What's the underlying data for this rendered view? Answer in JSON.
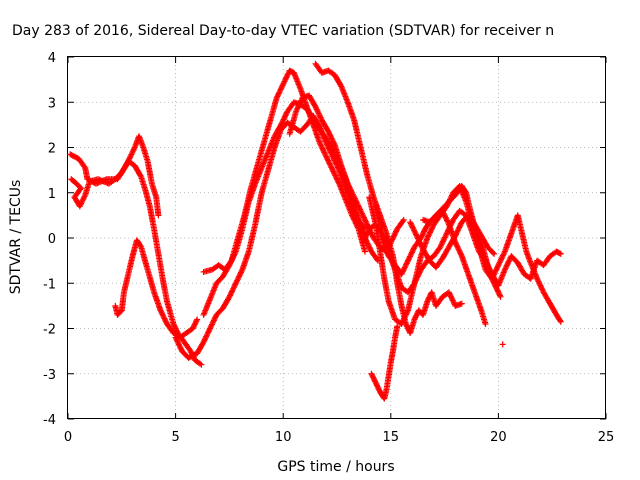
{
  "chart_data": {
    "type": "scatter",
    "title": "Day 283 of 2016, Sidereal Day-to-day VTEC variation (SDTVAR) for receiver n",
    "xlabel": "GPS time / hours",
    "ylabel": "SDTVAR / TECUs",
    "xlim": [
      0,
      25
    ],
    "ylim": [
      -4,
      4
    ],
    "xticks": [
      "0",
      "5",
      "10",
      "15",
      "20",
      "25"
    ],
    "yticks": [
      "-4",
      "-3",
      "-2",
      "-1",
      "0",
      "1",
      "2",
      "3",
      "4"
    ],
    "grid": true,
    "marker": "+",
    "color": "#ff0000",
    "series": [
      {
        "points": [
          [
            0.1,
            1.85
          ],
          [
            0.5,
            1.75
          ],
          [
            0.8,
            1.55
          ],
          [
            0.9,
            1.3
          ],
          [
            1.3,
            1.2
          ],
          [
            1.8,
            1.3
          ],
          [
            2.3,
            1.3
          ],
          [
            2.7,
            1.6
          ],
          [
            3.1,
            2.0
          ],
          [
            3.3,
            2.25
          ],
          [
            3.5,
            2.0
          ],
          [
            3.7,
            1.7
          ],
          [
            3.9,
            1.2
          ],
          [
            4.1,
            0.9
          ],
          [
            4.2,
            0.5
          ]
        ]
      },
      {
        "points": [
          [
            0.15,
            1.3
          ],
          [
            0.4,
            1.2
          ],
          [
            0.6,
            1.1
          ],
          [
            0.3,
            0.9
          ],
          [
            0.55,
            0.7
          ],
          [
            0.8,
            0.95
          ],
          [
            1.0,
            1.25
          ],
          [
            1.4,
            1.3
          ],
          [
            1.9,
            1.2
          ],
          [
            2.2,
            1.3
          ],
          [
            2.5,
            1.45
          ],
          [
            2.8,
            1.7
          ],
          [
            3.1,
            1.6
          ],
          [
            3.4,
            1.35
          ],
          [
            3.6,
            1.05
          ],
          [
            3.8,
            0.7
          ],
          [
            4.0,
            0.2
          ],
          [
            4.2,
            -0.35
          ],
          [
            4.4,
            -0.9
          ],
          [
            4.6,
            -1.4
          ],
          [
            4.9,
            -1.9
          ],
          [
            5.1,
            -2.1
          ],
          [
            5.4,
            -2.3
          ],
          [
            5.7,
            -2.5
          ],
          [
            5.9,
            -2.7
          ],
          [
            6.2,
            -2.8
          ]
        ]
      },
      {
        "points": [
          [
            2.2,
            -1.5
          ],
          [
            2.3,
            -1.7
          ],
          [
            2.5,
            -1.6
          ],
          [
            2.6,
            -1.2
          ],
          [
            2.8,
            -0.8
          ],
          [
            3.0,
            -0.4
          ],
          [
            3.2,
            -0.05
          ],
          [
            3.4,
            -0.2
          ],
          [
            3.7,
            -0.7
          ],
          [
            4.0,
            -1.2
          ],
          [
            4.3,
            -1.6
          ],
          [
            4.6,
            -1.9
          ],
          [
            4.9,
            -2.1
          ],
          [
            5.2,
            -2.2
          ],
          [
            5.5,
            -2.1
          ],
          [
            5.8,
            -2.0
          ],
          [
            6.0,
            -1.8
          ]
        ]
      },
      {
        "points": [
          [
            5.0,
            -2.2
          ],
          [
            5.3,
            -2.5
          ],
          [
            5.6,
            -2.65
          ],
          [
            6.0,
            -2.55
          ],
          [
            6.3,
            -2.3
          ],
          [
            6.6,
            -2.0
          ],
          [
            6.9,
            -1.7
          ],
          [
            7.2,
            -1.55
          ],
          [
            7.5,
            -1.3
          ],
          [
            7.8,
            -1.0
          ],
          [
            8.1,
            -0.7
          ],
          [
            8.4,
            -0.3
          ],
          [
            8.7,
            0.3
          ],
          [
            9.0,
            1.0
          ],
          [
            9.3,
            1.5
          ],
          [
            9.6,
            2.0
          ],
          [
            9.9,
            2.4
          ],
          [
            10.2,
            2.55
          ],
          [
            10.5,
            2.45
          ],
          [
            10.8,
            2.35
          ],
          [
            11.1,
            2.5
          ],
          [
            11.4,
            2.7
          ],
          [
            11.7,
            2.45
          ],
          [
            12.0,
            2.1
          ],
          [
            12.3,
            1.8
          ],
          [
            12.6,
            1.5
          ],
          [
            12.9,
            1.1
          ],
          [
            13.2,
            0.7
          ],
          [
            13.5,
            0.4
          ],
          [
            13.8,
            0.2
          ]
        ]
      },
      {
        "points": [
          [
            6.3,
            -1.7
          ],
          [
            6.6,
            -1.35
          ],
          [
            6.9,
            -1.0
          ],
          [
            7.2,
            -0.85
          ],
          [
            7.5,
            -0.6
          ],
          [
            7.8,
            -0.3
          ],
          [
            8.1,
            0.2
          ],
          [
            8.4,
            0.8
          ],
          [
            8.7,
            1.2
          ],
          [
            9.0,
            1.55
          ],
          [
            9.3,
            1.9
          ],
          [
            9.6,
            2.25
          ],
          [
            9.9,
            2.5
          ],
          [
            10.2,
            2.8
          ],
          [
            10.5,
            3.0
          ],
          [
            10.8,
            2.95
          ],
          [
            11.1,
            2.85
          ],
          [
            11.4,
            2.65
          ],
          [
            11.7,
            2.4
          ],
          [
            12.0,
            2.2
          ],
          [
            12.3,
            1.95
          ],
          [
            12.6,
            1.6
          ],
          [
            12.9,
            1.3
          ],
          [
            13.2,
            0.9
          ],
          [
            13.5,
            0.4
          ],
          [
            13.8,
            0.0
          ],
          [
            14.1,
            -0.3
          ],
          [
            14.4,
            -0.5
          ]
        ]
      },
      {
        "points": [
          [
            6.3,
            -0.75
          ],
          [
            6.7,
            -0.7
          ],
          [
            7.0,
            -0.6
          ],
          [
            7.3,
            -0.7
          ],
          [
            7.6,
            -0.5
          ],
          [
            7.9,
            0.0
          ],
          [
            8.2,
            0.5
          ],
          [
            8.5,
            1.1
          ],
          [
            8.8,
            1.6
          ],
          [
            9.1,
            2.1
          ],
          [
            9.4,
            2.6
          ],
          [
            9.7,
            3.1
          ],
          [
            10.0,
            3.4
          ],
          [
            10.3,
            3.7
          ],
          [
            10.5,
            3.65
          ],
          [
            10.8,
            3.3
          ],
          [
            11.1,
            2.9
          ],
          [
            11.4,
            2.5
          ],
          [
            11.7,
            2.1
          ],
          [
            12.0,
            1.8
          ],
          [
            12.3,
            1.5
          ],
          [
            12.6,
            1.2
          ],
          [
            12.9,
            0.85
          ],
          [
            13.2,
            0.5
          ],
          [
            13.5,
            0.2
          ],
          [
            13.8,
            -0.3
          ]
        ]
      },
      {
        "points": [
          [
            10.3,
            2.3
          ],
          [
            10.6,
            2.8
          ],
          [
            10.9,
            3.1
          ],
          [
            11.2,
            3.15
          ],
          [
            11.5,
            2.9
          ],
          [
            11.8,
            2.6
          ],
          [
            12.1,
            2.35
          ],
          [
            12.4,
            2.05
          ],
          [
            12.7,
            1.6
          ],
          [
            13.0,
            1.2
          ],
          [
            13.3,
            0.9
          ],
          [
            13.6,
            0.6
          ],
          [
            13.9,
            0.3
          ],
          [
            14.2,
            0.0
          ],
          [
            14.5,
            -0.2
          ],
          [
            14.8,
            -0.3
          ],
          [
            15.1,
            0.0
          ],
          [
            15.3,
            0.2
          ],
          [
            15.6,
            0.4
          ]
        ]
      },
      {
        "points": [
          [
            11.5,
            3.85
          ],
          [
            11.8,
            3.65
          ],
          [
            12.1,
            3.7
          ],
          [
            12.4,
            3.6
          ],
          [
            12.7,
            3.35
          ],
          [
            13.0,
            3.0
          ],
          [
            13.3,
            2.6
          ],
          [
            13.6,
            2.0
          ],
          [
            13.9,
            1.4
          ],
          [
            14.2,
            0.9
          ],
          [
            14.5,
            0.5
          ],
          [
            14.8,
            0.1
          ],
          [
            15.1,
            -0.4
          ],
          [
            15.3,
            -1.0
          ],
          [
            15.5,
            -1.5
          ],
          [
            15.7,
            -1.9
          ],
          [
            15.9,
            -2.1
          ],
          [
            16.1,
            -1.8
          ],
          [
            16.3,
            -1.6
          ],
          [
            16.5,
            -1.7
          ],
          [
            16.7,
            -1.4
          ],
          [
            16.9,
            -1.2
          ],
          [
            17.1,
            -1.5
          ],
          [
            17.4,
            -1.3
          ],
          [
            17.7,
            -1.2
          ],
          [
            18.0,
            -1.5
          ],
          [
            18.3,
            -1.45
          ]
        ]
      },
      {
        "points": [
          [
            13.7,
            -0.1
          ],
          [
            14.0,
            0.2
          ],
          [
            14.3,
            0.3
          ],
          [
            14.6,
            0.1
          ],
          [
            14.9,
            -0.3
          ],
          [
            15.2,
            -0.7
          ],
          [
            15.5,
            -1.1
          ],
          [
            15.8,
            -1.2
          ],
          [
            16.1,
            -1.0
          ],
          [
            16.4,
            -0.7
          ],
          [
            16.7,
            -0.5
          ],
          [
            17.0,
            -0.4
          ],
          [
            17.3,
            -0.2
          ],
          [
            17.6,
            0.1
          ],
          [
            17.9,
            0.4
          ],
          [
            18.2,
            0.6
          ],
          [
            18.5,
            0.5
          ],
          [
            18.8,
            0.1
          ],
          [
            19.1,
            -0.3
          ],
          [
            19.4,
            -0.5
          ],
          [
            19.7,
            -0.8
          ],
          [
            20.0,
            -1.05
          ],
          [
            20.3,
            -0.7
          ],
          [
            20.6,
            -0.4
          ],
          [
            20.9,
            -0.55
          ],
          [
            21.2,
            -0.8
          ],
          [
            21.5,
            -0.9
          ],
          [
            21.8,
            -0.5
          ],
          [
            22.1,
            -0.6
          ],
          [
            22.4,
            -0.4
          ],
          [
            22.7,
            -0.3
          ],
          [
            22.9,
            -0.35
          ]
        ]
      },
      {
        "points": [
          [
            14.0,
            0.9
          ],
          [
            14.3,
            0.3
          ],
          [
            14.5,
            -0.3
          ],
          [
            14.7,
            -0.9
          ],
          [
            14.9,
            -1.4
          ],
          [
            15.2,
            -1.8
          ],
          [
            15.5,
            -1.9
          ],
          [
            15.8,
            -1.6
          ],
          [
            16.1,
            -1.0
          ],
          [
            16.4,
            -0.4
          ],
          [
            16.7,
            0.0
          ],
          [
            17.0,
            0.3
          ],
          [
            17.3,
            0.5
          ],
          [
            17.6,
            0.7
          ],
          [
            17.9,
            1.0
          ],
          [
            18.2,
            1.15
          ],
          [
            18.5,
            0.8
          ],
          [
            18.8,
            0.3
          ],
          [
            19.1,
            -0.2
          ],
          [
            19.4,
            -0.7
          ],
          [
            19.7,
            -0.9
          ],
          [
            20.0,
            -0.6
          ],
          [
            20.3,
            -0.3
          ],
          [
            20.6,
            0.1
          ],
          [
            20.9,
            0.5
          ],
          [
            21.1,
            0.1
          ],
          [
            21.3,
            -0.3
          ],
          [
            21.5,
            -0.55
          ],
          [
            21.8,
            -0.9
          ],
          [
            22.1,
            -1.2
          ],
          [
            22.4,
            -1.45
          ],
          [
            22.7,
            -1.7
          ],
          [
            22.9,
            -1.85
          ]
        ]
      },
      {
        "points": [
          [
            14.3,
            0.7
          ],
          [
            14.5,
            0.2
          ],
          [
            14.7,
            -0.2
          ],
          [
            14.9,
            -0.4
          ],
          [
            15.2,
            -0.6
          ],
          [
            15.5,
            -0.8
          ],
          [
            15.8,
            -0.5
          ],
          [
            16.1,
            -0.2
          ],
          [
            16.4,
            0.0
          ],
          [
            16.6,
            0.2
          ],
          [
            16.8,
            0.35
          ],
          [
            17.1,
            0.5
          ],
          [
            17.4,
            0.6
          ],
          [
            17.7,
            0.3
          ],
          [
            18.0,
            -0.1
          ],
          [
            18.3,
            -0.4
          ],
          [
            18.6,
            -0.8
          ],
          [
            18.9,
            -1.2
          ],
          [
            19.2,
            -1.6
          ],
          [
            19.4,
            -1.9
          ]
        ]
      },
      {
        "points": [
          [
            15.9,
            0.35
          ],
          [
            16.2,
            0.05
          ],
          [
            16.5,
            -0.25
          ],
          [
            16.8,
            -0.5
          ],
          [
            17.1,
            -0.65
          ],
          [
            17.4,
            -0.45
          ],
          [
            17.7,
            -0.2
          ],
          [
            18.0,
            0.05
          ],
          [
            18.3,
            0.35
          ],
          [
            18.6,
            0.5
          ],
          [
            18.9,
            0.3
          ],
          [
            19.2,
            0.05
          ],
          [
            19.5,
            -0.2
          ],
          [
            19.8,
            -0.35
          ]
        ]
      },
      {
        "points": [
          [
            14.1,
            -3.0
          ],
          [
            14.3,
            -3.2
          ],
          [
            14.5,
            -3.4
          ],
          [
            14.7,
            -3.55
          ],
          [
            14.8,
            -3.35
          ],
          [
            14.9,
            -3.05
          ],
          [
            15.0,
            -2.75
          ],
          [
            15.1,
            -2.5
          ],
          [
            15.2,
            -2.2
          ],
          [
            15.3,
            -1.95
          ]
        ]
      },
      {
        "points": [
          [
            16.5,
            0.4
          ],
          [
            16.8,
            0.35
          ],
          [
            17.1,
            0.5
          ],
          [
            17.4,
            0.65
          ],
          [
            17.7,
            0.8
          ],
          [
            18.0,
            0.95
          ],
          [
            18.3,
            1.15
          ],
          [
            18.5,
            1.0
          ],
          [
            18.7,
            0.6
          ],
          [
            18.9,
            0.25
          ],
          [
            19.1,
            0.0
          ],
          [
            19.3,
            -0.25
          ],
          [
            19.5,
            -0.6
          ],
          [
            19.7,
            -0.9
          ],
          [
            19.9,
            -1.1
          ],
          [
            20.1,
            -1.3
          ]
        ]
      },
      {
        "points": [
          [
            20.2,
            -2.35
          ]
        ]
      }
    ]
  }
}
